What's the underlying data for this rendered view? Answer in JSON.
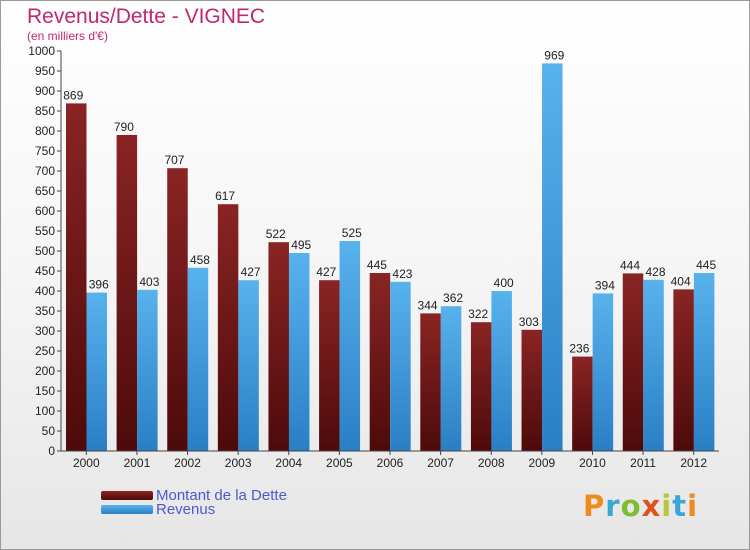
{
  "title": "Revenus/Dette - VIGNEC",
  "subtitle": "(en milliers d'€)",
  "brand": {
    "text": "Proxiti",
    "colors": [
      "#f08a1c",
      "#39a7d6",
      "#7cbd32",
      "#e0521b",
      "#b6c93a",
      "#39a7d6",
      "#f08a1c"
    ]
  },
  "chart_data": {
    "type": "bar",
    "categories": [
      "2000",
      "2001",
      "2002",
      "2003",
      "2004",
      "2005",
      "2006",
      "2007",
      "2008",
      "2009",
      "2010",
      "2011",
      "2012"
    ],
    "series": [
      {
        "name": "Montant de la Dette",
        "color": "#7a1a1a",
        "values": [
          869,
          790,
          707,
          617,
          522,
          427,
          445,
          344,
          322,
          303,
          236,
          444,
          404
        ]
      },
      {
        "name": "Revenus",
        "color": "#3f9fe0",
        "values": [
          396,
          403,
          458,
          427,
          495,
          525,
          423,
          362,
          400,
          969,
          394,
          428,
          445
        ]
      }
    ],
    "ylim": [
      0,
      1000
    ],
    "ytick_step": 50,
    "grid": false,
    "legend_position": "bottom-left"
  }
}
